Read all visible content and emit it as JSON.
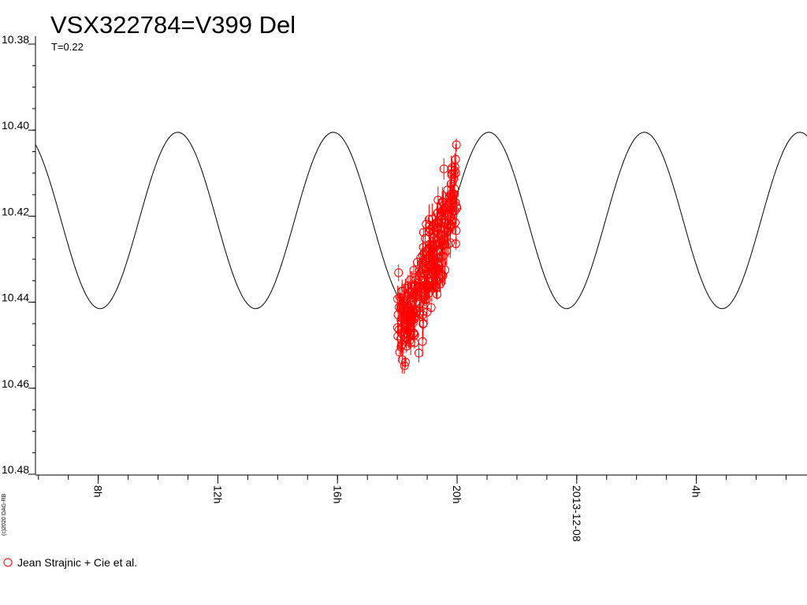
{
  "title": "VSX322784=V399 Del",
  "subtitle": "T=0.22",
  "copyright": "(c)2020 OAG-RB",
  "colors": {
    "observations": "#ff0000",
    "model": "#000000",
    "axis": "#000000"
  },
  "chart_data": {
    "type": "scatter",
    "title": "VSX322784=V399 Del",
    "ylim": [
      10.48,
      10.38
    ],
    "y_inverted": true,
    "yticks": [
      "10.38",
      "10.40",
      "10.42",
      "10.44",
      "10.46",
      "10.48"
    ],
    "xlim_hours": [
      5.9,
      31.7
    ],
    "xtick_labels": [
      {
        "label": "8h",
        "hour": 8
      },
      {
        "label": "12h",
        "hour": 12
      },
      {
        "label": "16h",
        "hour": 16
      },
      {
        "label": "20h",
        "hour": 20
      },
      {
        "label": "2013-12-08",
        "hour": 24
      },
      {
        "label": "4h",
        "hour": 28
      }
    ],
    "model": {
      "type": "sine",
      "mean": 10.421,
      "amplitude": 0.0205,
      "period_hours": 5.2,
      "minimum_hour": 8.06
    },
    "series": [
      {
        "name": "Jean Strajnic + Cie et al.",
        "marker": "open-circle",
        "error_bars": true,
        "hour_range": [
          18.0,
          20.0
        ],
        "mag_lower_envelope": 10.445,
        "mag_upper_envelope": 10.412,
        "mag_spread": 0.012,
        "n_points": 300
      }
    ],
    "grid": false,
    "legend": "bottom-left"
  }
}
